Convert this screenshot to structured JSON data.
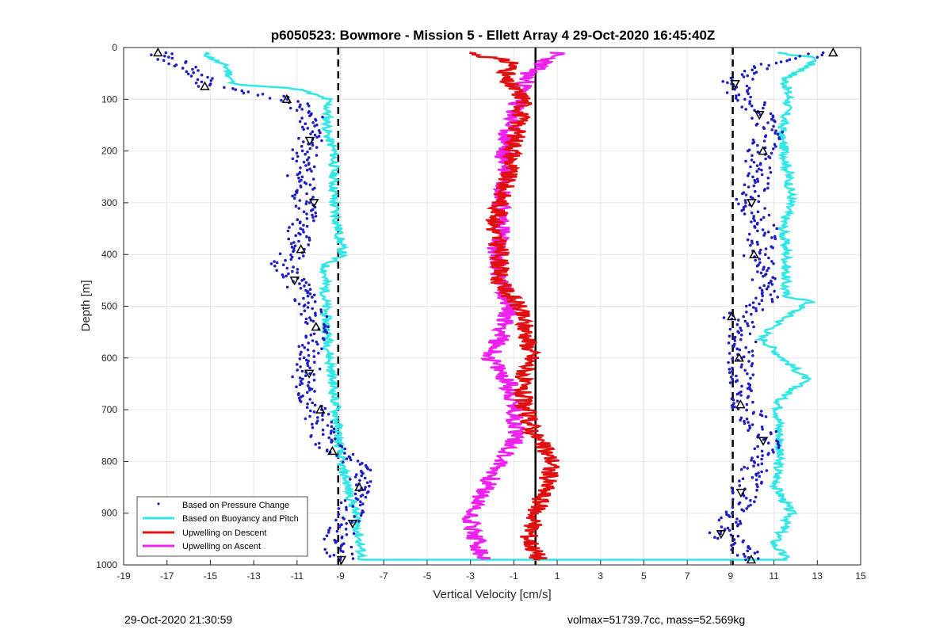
{
  "chart_data": {
    "type": "scatter",
    "title": "p6050523: Bowmore - Mission 5 - Ellett Array 4 29-Oct-2020 16:45:40Z",
    "xlabel": "Vertical Velocity [cm/s]",
    "ylabel": "Depth [m]",
    "xlim": [
      -19,
      15
    ],
    "ylim": [
      0,
      1000
    ],
    "y_reversed": true,
    "grid": true,
    "xticks": [
      -19,
      -17,
      -15,
      -13,
      -11,
      -9,
      -7,
      -5,
      -3,
      -1,
      1,
      3,
      5,
      7,
      9,
      11,
      13,
      15
    ],
    "yticks": [
      0,
      100,
      200,
      300,
      400,
      500,
      600,
      700,
      800,
      900,
      1000
    ],
    "legend_position": "bottom-left",
    "reference_lines": [
      {
        "style": "dashed",
        "x": -9.1,
        "color": "#000000"
      },
      {
        "style": "dashed",
        "x": 9.1,
        "color": "#000000"
      },
      {
        "style": "solid",
        "x": 0,
        "color": "#000000"
      }
    ],
    "series": [
      {
        "name": "Based on Pressure Change",
        "marker": "dot",
        "color": "#1f1fbf",
        "descent_profile": [
          [
            -17.5,
            10
          ],
          [
            -16,
            40
          ],
          [
            -15,
            75
          ],
          [
            -12.5,
            90
          ],
          [
            -11.5,
            100
          ],
          [
            -10.3,
            130
          ],
          [
            -10.5,
            180
          ],
          [
            -10.8,
            250
          ],
          [
            -10.5,
            300
          ],
          [
            -10.9,
            350
          ],
          [
            -11,
            390
          ],
          [
            -11.6,
            420
          ],
          [
            -11.2,
            450
          ],
          [
            -10.5,
            500
          ],
          [
            -10,
            540
          ],
          [
            -10.3,
            580
          ],
          [
            -10.5,
            630
          ],
          [
            -10.8,
            660
          ],
          [
            -10.2,
            700
          ],
          [
            -9.8,
            750
          ],
          [
            -9.3,
            780
          ],
          [
            -8.2,
            810
          ],
          [
            -8,
            850
          ],
          [
            -8.5,
            880
          ],
          [
            -8.7,
            920
          ],
          [
            -9.2,
            950
          ],
          [
            -9,
            990
          ]
        ],
        "ascent_profile": [
          [
            13.5,
            10
          ],
          [
            11,
            30
          ],
          [
            9,
            70
          ],
          [
            9.8,
            100
          ],
          [
            10.5,
            130
          ],
          [
            10.8,
            170
          ],
          [
            10.3,
            200
          ],
          [
            10.4,
            250
          ],
          [
            9.8,
            300
          ],
          [
            10.6,
            350
          ],
          [
            10.2,
            400
          ],
          [
            10.9,
            480
          ],
          [
            9.3,
            520
          ],
          [
            9.6,
            560
          ],
          [
            9.4,
            600
          ],
          [
            9.4,
            650
          ],
          [
            9.6,
            690
          ],
          [
            10.1,
            720
          ],
          [
            10.8,
            760
          ],
          [
            10.2,
            800
          ],
          [
            9.6,
            860
          ],
          [
            9.3,
            900
          ],
          [
            8.6,
            940
          ],
          [
            9.5,
            960
          ],
          [
            9.7,
            990
          ]
        ]
      },
      {
        "name": "Based on Buoyancy and Pitch",
        "marker": "line",
        "color": "#33e6e6",
        "descent_profile": [
          [
            -15.3,
            10
          ],
          [
            -14.2,
            40
          ],
          [
            -14,
            70
          ],
          [
            -11,
            80
          ],
          [
            -9.6,
            100
          ],
          [
            -9.6,
            170
          ],
          [
            -9.3,
            200
          ],
          [
            -9.3,
            300
          ],
          [
            -8.9,
            400
          ],
          [
            -9.7,
            420
          ],
          [
            -9.7,
            500
          ],
          [
            -9.5,
            600
          ],
          [
            -9.2,
            700
          ],
          [
            -9,
            800
          ],
          [
            -8.3,
            900
          ],
          [
            -8,
            990
          ]
        ],
        "ascent_profile": [
          [
            11,
            10
          ],
          [
            13,
            20
          ],
          [
            12.5,
            40
          ],
          [
            11.5,
            60
          ],
          [
            11.7,
            100
          ],
          [
            11.3,
            170
          ],
          [
            11.5,
            200
          ],
          [
            11.8,
            290
          ],
          [
            11.4,
            350
          ],
          [
            11.6,
            400
          ],
          [
            11.5,
            480
          ],
          [
            12.7,
            490
          ],
          [
            11.6,
            520
          ],
          [
            10.4,
            560
          ],
          [
            11.4,
            600
          ],
          [
            12.5,
            640
          ],
          [
            11.3,
            680
          ],
          [
            11.2,
            700
          ],
          [
            11.3,
            760
          ],
          [
            11.2,
            800
          ],
          [
            11.1,
            850
          ],
          [
            11.8,
            900
          ],
          [
            11,
            960
          ],
          [
            11.6,
            990
          ]
        ]
      },
      {
        "name": "Upwelling on Descent",
        "marker": "line",
        "color": "#e01010",
        "profile": [
          [
            -3,
            10
          ],
          [
            -1,
            30
          ],
          [
            -1.5,
            60
          ],
          [
            -0.5,
            100
          ],
          [
            -0.8,
            150
          ],
          [
            -1,
            200
          ],
          [
            -1.3,
            250
          ],
          [
            -1.6,
            300
          ],
          [
            -1.9,
            350
          ],
          [
            -1.6,
            400
          ],
          [
            -1.7,
            450
          ],
          [
            -0.8,
            500
          ],
          [
            -0.4,
            550
          ],
          [
            -0.2,
            600
          ],
          [
            -0.7,
            650
          ],
          [
            -0.5,
            700
          ],
          [
            0,
            750
          ],
          [
            0.8,
            800
          ],
          [
            0.5,
            850
          ],
          [
            0,
            900
          ],
          [
            -0.3,
            950
          ],
          [
            0.2,
            990
          ]
        ]
      },
      {
        "name": "Upwelling on Ascent",
        "marker": "line",
        "color": "#ee22ee",
        "profile": [
          [
            1,
            10
          ],
          [
            -0.3,
            50
          ],
          [
            -0.8,
            100
          ],
          [
            -1.2,
            150
          ],
          [
            -1.5,
            200
          ],
          [
            -1.3,
            250
          ],
          [
            -1.6,
            300
          ],
          [
            -1.5,
            350
          ],
          [
            -1.9,
            400
          ],
          [
            -1.6,
            450
          ],
          [
            -1.2,
            500
          ],
          [
            -1.5,
            550
          ],
          [
            -2.1,
            600
          ],
          [
            -1.2,
            650
          ],
          [
            -1,
            700
          ],
          [
            -0.8,
            750
          ],
          [
            -1.6,
            800
          ],
          [
            -2.3,
            850
          ],
          [
            -3,
            900
          ],
          [
            -2.8,
            950
          ],
          [
            -2.5,
            990
          ]
        ]
      }
    ]
  },
  "footer": {
    "timestamp": "29-Oct-2020 21:30:59",
    "info": "volmax=51739.7cc, mass=52.569kg"
  }
}
